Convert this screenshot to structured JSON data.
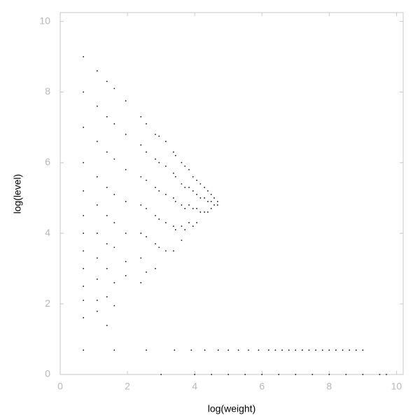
{
  "chart_data": {
    "type": "scatter",
    "xlabel": "log(weight)",
    "ylabel": "log(level)",
    "color": "#000000",
    "xlim": [
      0,
      10.2
    ],
    "ylim": [
      0,
      10.25
    ],
    "xticks": [
      0,
      2,
      4,
      6,
      8,
      10
    ],
    "yticks": [
      0,
      2,
      4,
      6,
      8,
      10
    ],
    "x": [
      0.69,
      0.69,
      0.69,
      0.69,
      0.69,
      0.69,
      0.69,
      0.69,
      0.69,
      0.69,
      0.69,
      0.69,
      1.1,
      1.1,
      1.1,
      1.1,
      1.1,
      1.1,
      1.1,
      1.1,
      1.1,
      1.1,
      1.39,
      1.39,
      1.39,
      1.39,
      1.39,
      1.39,
      1.39,
      1.39,
      1.39,
      1.61,
      1.61,
      1.61,
      1.61,
      1.61,
      1.61,
      1.61,
      1.61,
      1.95,
      1.95,
      1.95,
      1.95,
      1.95,
      1.95,
      1.95,
      2.4,
      2.4,
      2.4,
      2.4,
      2.4,
      2.4,
      2.4,
      2.56,
      2.56,
      2.56,
      2.56,
      2.56,
      2.56,
      2.83,
      2.83,
      2.83,
      2.83,
      2.83,
      2.83,
      2.94,
      2.94,
      2.94,
      2.94,
      2.94,
      3.14,
      3.14,
      3.14,
      3.14,
      3.14,
      3.37,
      3.37,
      3.37,
      3.37,
      3.37,
      3.43,
      3.43,
      3.43,
      3.43,
      3.61,
      3.61,
      3.61,
      3.61,
      3.61,
      3.71,
      3.71,
      3.71,
      3.71,
      3.83,
      3.83,
      3.83,
      3.83,
      3.95,
      3.95,
      3.95,
      3.95,
      4.06,
      4.06,
      4.06,
      4.06,
      4.17,
      4.17,
      4.17,
      4.29,
      4.29,
      4.29,
      4.39,
      4.39,
      4.39,
      4.49,
      4.49,
      4.49,
      4.58,
      4.58,
      4.68,
      4.68,
      0.69,
      1.61,
      2.56,
      3.4,
      3.9,
      4.3,
      4.7,
      5.0,
      5.3,
      5.6,
      5.9,
      6.2,
      6.4,
      6.6,
      6.8,
      7.0,
      7.2,
      7.4,
      7.6,
      7.8,
      8.0,
      8.2,
      8.4,
      8.6,
      8.8,
      9.0,
      3.0,
      4.0,
      4.5,
      5.0,
      5.5,
      6.0,
      6.5,
      7.0,
      7.5,
      8.0,
      8.5,
      9.0,
      9.5,
      9.7
    ],
    "values": [
      9.0,
      8.0,
      7.0,
      6.0,
      5.2,
      4.5,
      4.0,
      3.5,
      3.0,
      2.5,
      2.1,
      1.61,
      8.6,
      7.6,
      6.6,
      5.6,
      4.8,
      4.0,
      3.3,
      2.7,
      2.1,
      1.79,
      8.3,
      7.3,
      6.3,
      5.3,
      4.5,
      3.7,
      3.0,
      2.2,
      1.39,
      8.1,
      7.1,
      6.1,
      5.1,
      4.3,
      3.6,
      2.6,
      1.95,
      7.75,
      6.8,
      5.8,
      4.9,
      4.0,
      3.2,
      2.8,
      7.3,
      6.5,
      5.6,
      4.8,
      4.0,
      3.3,
      2.6,
      7.1,
      6.3,
      5.5,
      4.7,
      3.9,
      2.9,
      6.8,
      6.1,
      5.3,
      4.5,
      3.7,
      3.0,
      6.75,
      6.0,
      5.2,
      4.4,
      3.6,
      6.6,
      5.9,
      5.1,
      4.3,
      3.5,
      6.3,
      5.7,
      5.0,
      4.2,
      3.5,
      6.2,
      5.6,
      4.9,
      4.1,
      6.0,
      5.4,
      4.8,
      4.2,
      3.8,
      5.9,
      5.3,
      4.7,
      4.1,
      5.8,
      5.3,
      4.8,
      4.3,
      5.6,
      5.2,
      4.7,
      4.2,
      5.5,
      5.1,
      4.7,
      4.3,
      5.4,
      5.0,
      4.6,
      5.3,
      5.0,
      4.6,
      5.2,
      4.9,
      4.6,
      5.1,
      4.9,
      4.7,
      5.0,
      4.8,
      4.9,
      4.8,
      0.69,
      0.69,
      0.69,
      0.69,
      0.69,
      0.69,
      0.69,
      0.69,
      0.69,
      0.69,
      0.69,
      0.69,
      0.69,
      0.69,
      0.69,
      0.69,
      0.69,
      0.69,
      0.69,
      0.69,
      0.69,
      0.69,
      0.69,
      0.69,
      0.69,
      0.69,
      0,
      0,
      0,
      0,
      0,
      0,
      0,
      0,
      0,
      0,
      0,
      0,
      0,
      0
    ]
  }
}
